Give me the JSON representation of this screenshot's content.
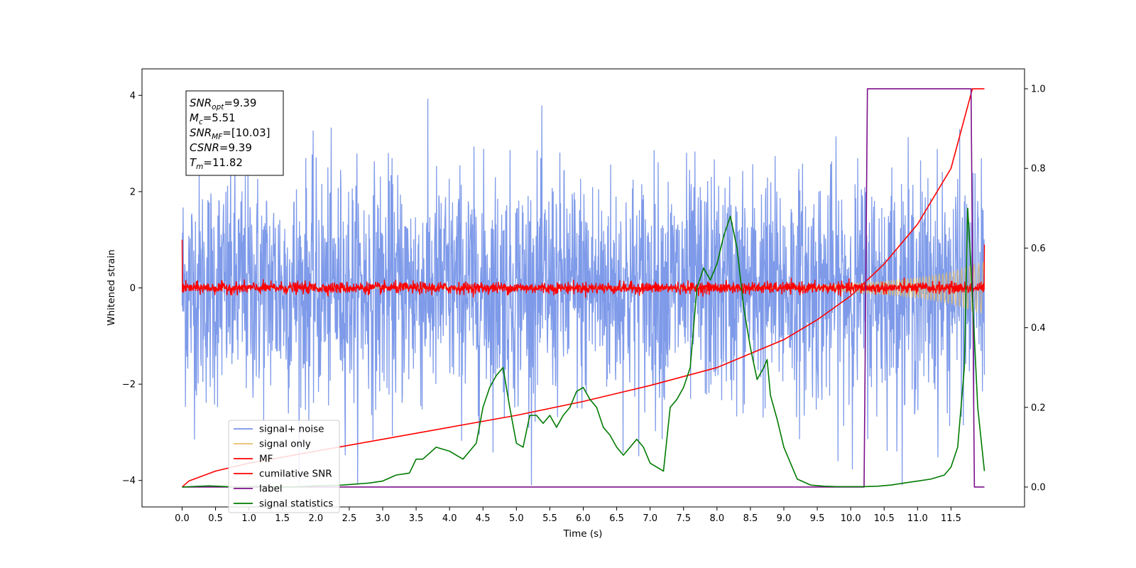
{
  "chart_data": {
    "type": "line",
    "title": "",
    "xlabel": "Time (s)",
    "ylabel": "Whitened strain",
    "y2label": "",
    "xlim": [
      -0.6,
      12.6
    ],
    "ylim": [
      -4.55,
      4.55
    ],
    "y2lim": [
      -0.05,
      1.05
    ],
    "xticks": [
      0.0,
      0.5,
      1.0,
      1.5,
      2.0,
      2.5,
      3.0,
      3.5,
      4.0,
      4.5,
      5.0,
      5.5,
      6.0,
      6.5,
      7.0,
      7.5,
      8.0,
      8.5,
      9.0,
      9.5,
      10.0,
      10.5,
      11.0,
      11.5
    ],
    "xtick_labels": [
      "0.0",
      "0.5",
      "1.0",
      "1.5",
      "2.0",
      "2.5",
      "3.0",
      "3.5",
      "4.0",
      "4.5",
      "5.0",
      "5.5",
      "6.0",
      "6.5",
      "7.0",
      "7.5",
      "8.0",
      "8.5",
      "9.0",
      "9.5",
      "10.0",
      "10.5",
      "11.0",
      "11.5"
    ],
    "yticks": [
      -4,
      -2,
      0,
      2,
      4
    ],
    "ytick_labels": [
      "−4",
      "−2",
      "0",
      "2",
      "4"
    ],
    "y2ticks": [
      0.0,
      0.2,
      0.4,
      0.6,
      0.8,
      1.0
    ],
    "y2tick_labels": [
      "0.0",
      "0.2",
      "0.4",
      "0.6",
      "0.8",
      "1.0"
    ],
    "grid": false,
    "legend_position": "lower-left",
    "annotation": [
      {
        "base": "SNR",
        "sub": "opt",
        "value": "=9.39"
      },
      {
        "base": "M",
        "sub": "c",
        "value": "=5.51"
      },
      {
        "base": "SNR",
        "sub": "MF",
        "value": "=[10.03]"
      },
      {
        "base": "CSNR",
        "sub": "",
        "value": "=9.39"
      },
      {
        "base": "T",
        "sub": "m",
        "value": "=11.82"
      }
    ],
    "series": [
      {
        "name": "signal+ noise",
        "color": "#7795e8",
        "axis": "left",
        "x_start": 0.0,
        "x_end": 12.0,
        "noise_std": 1.2,
        "envelope": [
          -4.1,
          4.1
        ]
      },
      {
        "name": "signal only",
        "color": "#e8c06a",
        "axis": "left",
        "x": [
          0.0,
          9.0,
          9.5,
          10.0,
          10.5,
          11.0,
          11.5,
          11.8,
          12.0
        ],
        "amplitude": [
          0.0,
          0.02,
          0.05,
          0.1,
          0.15,
          0.22,
          0.34,
          0.48,
          0.55
        ]
      },
      {
        "name": "MF",
        "color": "#ff0000",
        "axis": "left",
        "x_start": 0.0,
        "x_end": 12.0,
        "noise_std": 0.06,
        "start_value": 1.0,
        "end_value": 0.9
      },
      {
        "name": "cumilative SNR",
        "color": "#ff0000",
        "axis": "right",
        "x": [
          0.0,
          0.1,
          0.5,
          1.0,
          2.0,
          3.0,
          4.0,
          5.0,
          6.0,
          7.0,
          8.0,
          9.0,
          9.5,
          10.0,
          10.5,
          11.0,
          11.5,
          11.82,
          12.0
        ],
        "y": [
          0.0,
          0.015,
          0.04,
          0.06,
          0.09,
          0.12,
          0.15,
          0.18,
          0.215,
          0.255,
          0.3,
          0.37,
          0.42,
          0.48,
          0.56,
          0.66,
          0.8,
          1.0,
          1.0
        ]
      },
      {
        "name": "label",
        "color": "#7b0f8a",
        "axis": "right",
        "x": [
          0.0,
          10.2,
          10.25,
          11.8,
          11.85,
          12.0
        ],
        "y": [
          0.0,
          0.0,
          1.0,
          1.0,
          0.0,
          0.0
        ]
      },
      {
        "name": "signal statistics",
        "color": "#007a00",
        "axis": "right",
        "x": [
          0.0,
          0.4,
          0.8,
          1.2,
          1.6,
          2.0,
          2.4,
          2.8,
          3.0,
          3.2,
          3.4,
          3.5,
          3.6,
          3.8,
          4.0,
          4.2,
          4.4,
          4.5,
          4.6,
          4.7,
          4.8,
          4.9,
          5.0,
          5.1,
          5.2,
          5.3,
          5.4,
          5.5,
          5.6,
          5.7,
          5.8,
          5.9,
          6.0,
          6.1,
          6.2,
          6.3,
          6.4,
          6.5,
          6.6,
          6.7,
          6.8,
          6.9,
          7.0,
          7.2,
          7.3,
          7.4,
          7.5,
          7.6,
          7.7,
          7.8,
          7.9,
          8.0,
          8.1,
          8.2,
          8.3,
          8.4,
          8.5,
          8.6,
          8.7,
          8.75,
          8.8,
          8.9,
          9.0,
          9.2,
          9.4,
          9.6,
          9.8,
          10.0,
          10.2,
          10.4,
          10.6,
          10.8,
          11.0,
          11.2,
          11.4,
          11.5,
          11.6,
          11.7,
          11.75,
          11.8,
          11.9,
          12.0
        ],
        "y": [
          0.0,
          0.003,
          0.0,
          0.002,
          0.0,
          0.003,
          0.005,
          0.01,
          0.015,
          0.03,
          0.035,
          0.07,
          0.07,
          0.1,
          0.09,
          0.07,
          0.11,
          0.2,
          0.25,
          0.28,
          0.3,
          0.2,
          0.11,
          0.1,
          0.18,
          0.18,
          0.16,
          0.18,
          0.15,
          0.18,
          0.2,
          0.24,
          0.25,
          0.22,
          0.2,
          0.15,
          0.13,
          0.1,
          0.08,
          0.1,
          0.12,
          0.1,
          0.06,
          0.04,
          0.2,
          0.22,
          0.25,
          0.3,
          0.5,
          0.55,
          0.52,
          0.56,
          0.63,
          0.68,
          0.6,
          0.45,
          0.35,
          0.27,
          0.3,
          0.32,
          0.23,
          0.17,
          0.1,
          0.02,
          0.005,
          0.002,
          0.001,
          0.001,
          0.001,
          0.002,
          0.005,
          0.01,
          0.015,
          0.02,
          0.03,
          0.05,
          0.1,
          0.3,
          0.7,
          0.55,
          0.2,
          0.04
        ]
      }
    ]
  }
}
